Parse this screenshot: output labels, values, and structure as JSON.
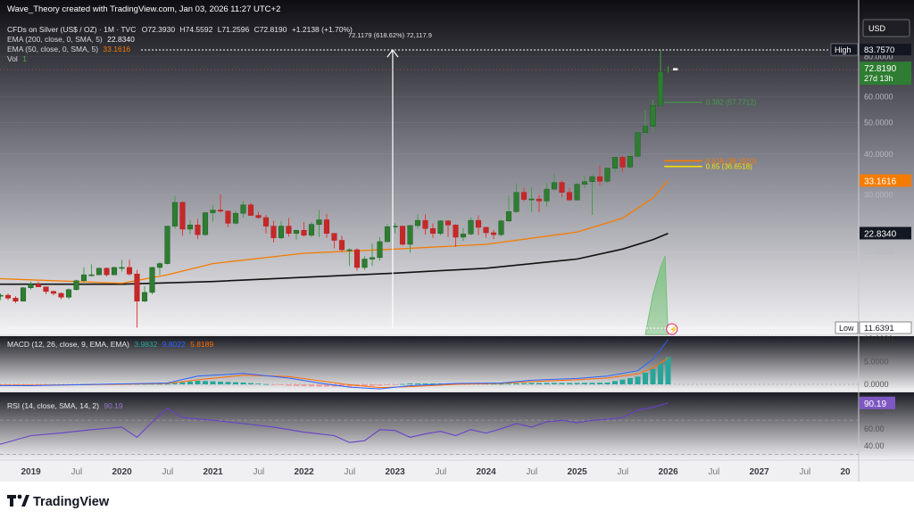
{
  "header": {
    "creator": "Wave_Theory created with TradingView.com, Jan 03, 2026 11:27 UTC+2",
    "currency_button": "USD"
  },
  "legend": {
    "symbol": "CFDs on Silver (US$ / OZ) · 1M · TVC",
    "open_label": "O",
    "open": "72.3930",
    "high_label": "H",
    "high": "74.5592",
    "low_label": "L",
    "low": "71.2596",
    "close_label": "C",
    "close": "72.8190",
    "change": "+1.2138 (+1.70%)",
    "ema200_label": "EMA (200, close, 0, SMA, 5)",
    "ema200_value": "22.8340",
    "ema50_label": "EMA (50, close, 0, SMA, 5)",
    "ema50_value": "33.1616",
    "vol_label": "Vol",
    "vol_value": "1"
  },
  "measure_label": "72.1179 (618.62%) 72,117.9",
  "fib_labels": {
    "f0": "0.382 (57.7712)",
    "f618": "0.618 (38.1610)",
    "f65": "0.65 (36.6518)"
  },
  "price_axis": {
    "ticks": [
      "80.0000",
      "60.0000",
      "50.0000",
      "40.0000",
      "30.0000",
      "20.0000"
    ],
    "high_tag": "High",
    "high_value": "83.7570",
    "last_price": "72.8190",
    "countdown": "27d 13h",
    "ema50_tag": "33.1616",
    "ema200_tag": "22.8340",
    "low_tag": "Low",
    "low_value": "11.6391"
  },
  "macd": {
    "label": "MACD (12, 26, close, 9, EMA, EMA)",
    "v1": "3.9832",
    "v2": "9.8022",
    "v3": "5.8189",
    "ticks": [
      "10.0000",
      "5.0000",
      "0.0000"
    ]
  },
  "rsi": {
    "label": "RSI (14, close, SMA, 14, 2)",
    "value_inline": "90.19",
    "tag": "90.19",
    "ticks": [
      "80.00",
      "60.00",
      "40.00"
    ]
  },
  "time_axis": [
    "2019",
    "Jul",
    "2020",
    "Jul",
    "2021",
    "Jul",
    "2022",
    "Jul",
    "2023",
    "Jul",
    "2024",
    "Jul",
    "2025",
    "Jul",
    "2026",
    "Jul",
    "2027",
    "Jul",
    "20"
  ],
  "footer": {
    "brand": "TradingView"
  },
  "colors": {
    "up": "#26a69a",
    "upBody": "#2e7d32",
    "down": "#ef5350",
    "downBody": "#c62828",
    "ema50": "#f57c00",
    "ema200": "#111111",
    "macd": "#2962ff",
    "signal": "#ff6d00",
    "rsi": "#7e57c2",
    "fib618": "#f57c00",
    "fib65": "#f6e000"
  },
  "chart_data": {
    "type": "candlestick",
    "title": "CFDs on Silver (US$ / OZ) · 1M · TVC",
    "ylabel": "USD",
    "ylim": [
      11.6391,
      83.757
    ],
    "start": "2018-01",
    "interval": "1M",
    "ohlc": [
      [
        17.1,
        17.3,
        16.3,
        16.5
      ],
      [
        16.5,
        16.9,
        16.2,
        16.4
      ],
      [
        16.4,
        16.6,
        16.0,
        16.3
      ],
      [
        16.3,
        16.8,
        16.1,
        16.6
      ],
      [
        16.6,
        16.8,
        16.2,
        16.4
      ],
      [
        16.4,
        17.3,
        16.2,
        16.2
      ],
      [
        16.2,
        16.1,
        15.4,
        15.5
      ],
      [
        15.5,
        15.7,
        14.4,
        14.6
      ],
      [
        14.6,
        14.9,
        14.2,
        14.7
      ],
      [
        14.7,
        14.9,
        14.2,
        14.4
      ],
      [
        14.4,
        14.6,
        13.9,
        14.1
      ],
      [
        14.1,
        15.6,
        14.1,
        15.5
      ],
      [
        15.5,
        16.2,
        15.3,
        15.9
      ],
      [
        15.9,
        16.2,
        15.6,
        15.6
      ],
      [
        15.6,
        15.6,
        14.8,
        15.1
      ],
      [
        15.1,
        15.2,
        14.7,
        14.9
      ],
      [
        14.9,
        15.0,
        14.3,
        14.5
      ],
      [
        14.5,
        15.4,
        14.3,
        15.3
      ],
      [
        15.3,
        16.4,
        15.2,
        16.3
      ],
      [
        16.3,
        17.9,
        16.1,
        17.0
      ],
      [
        17.0,
        18.3,
        16.8,
        17.0
      ],
      [
        17.0,
        17.9,
        17.0,
        17.8
      ],
      [
        17.8,
        17.9,
        16.8,
        17.0
      ],
      [
        17.0,
        18.0,
        17.0,
        17.9
      ],
      [
        17.9,
        18.9,
        17.4,
        17.9
      ],
      [
        17.9,
        18.9,
        16.9,
        17.1
      ],
      [
        17.1,
        17.6,
        11.6,
        14.1
      ],
      [
        14.1,
        15.7,
        14.0,
        15.0
      ],
      [
        15.0,
        18.0,
        14.8,
        17.9
      ],
      [
        17.9,
        18.6,
        17.0,
        18.4
      ],
      [
        18.4,
        24.0,
        18.3,
        24.0
      ],
      [
        24.0,
        29.8,
        23.6,
        28.4
      ],
      [
        28.4,
        28.6,
        22.4,
        23.5
      ],
      [
        23.5,
        25.0,
        22.7,
        24.2
      ],
      [
        24.2,
        25.3,
        21.9,
        22.6
      ],
      [
        22.6,
        26.5,
        22.4,
        26.4
      ],
      [
        26.4,
        27.9,
        24.8,
        26.9
      ],
      [
        26.9,
        30.1,
        26.4,
        26.7
      ],
      [
        26.7,
        26.8,
        23.8,
        24.5
      ],
      [
        24.5,
        26.7,
        24.3,
        26.3
      ],
      [
        26.3,
        28.7,
        25.5,
        27.9
      ],
      [
        27.9,
        28.3,
        25.9,
        25.9
      ],
      [
        25.9,
        26.6,
        25.3,
        25.5
      ],
      [
        25.5,
        26.0,
        22.8,
        24.0
      ],
      [
        24.0,
        24.9,
        21.4,
        22.1
      ],
      [
        22.1,
        24.8,
        21.9,
        24.0
      ],
      [
        24.0,
        25.4,
        22.3,
        22.8
      ],
      [
        22.8,
        23.4,
        21.8,
        23.3
      ],
      [
        23.3,
        24.7,
        22.3,
        22.5
      ],
      [
        22.5,
        24.7,
        22.2,
        24.3
      ],
      [
        24.3,
        26.9,
        22.2,
        25.1
      ],
      [
        25.1,
        26.2,
        22.1,
        22.8
      ],
      [
        22.8,
        22.8,
        20.5,
        21.7
      ],
      [
        21.7,
        22.4,
        20.0,
        20.3
      ],
      [
        20.3,
        20.5,
        18.1,
        20.3
      ],
      [
        20.3,
        20.5,
        17.5,
        17.9
      ],
      [
        17.9,
        19.4,
        17.6,
        19.0
      ],
      [
        19.0,
        21.2,
        18.1,
        19.2
      ],
      [
        19.2,
        22.2,
        18.8,
        21.5
      ],
      [
        21.5,
        24.3,
        21.4,
        23.9
      ],
      [
        23.9,
        24.5,
        22.8,
        24.0
      ],
      [
        24.0,
        24.0,
        20.9,
        21.1
      ],
      [
        21.1,
        24.0,
        19.9,
        24.1
      ],
      [
        24.1,
        26.1,
        23.6,
        25.0
      ],
      [
        25.0,
        26.1,
        22.6,
        23.6
      ],
      [
        23.6,
        24.5,
        22.1,
        22.8
      ],
      [
        22.8,
        25.0,
        22.5,
        24.9
      ],
      [
        24.9,
        25.0,
        22.2,
        24.2
      ],
      [
        24.2,
        24.3,
        20.7,
        22.2
      ],
      [
        22.2,
        23.7,
        21.6,
        22.7
      ],
      [
        22.7,
        25.5,
        22.5,
        25.0
      ],
      [
        25.0,
        25.9,
        22.5,
        23.8
      ],
      [
        23.8,
        23.8,
        22.1,
        22.9
      ],
      [
        22.9,
        23.4,
        21.9,
        22.6
      ],
      [
        22.6,
        25.1,
        22.3,
        24.9
      ],
      [
        24.9,
        29.8,
        24.7,
        26.6
      ],
      [
        26.6,
        32.5,
        26.4,
        30.5
      ],
      [
        30.5,
        31.5,
        28.6,
        29.0
      ],
      [
        29.0,
        31.7,
        26.6,
        29.1
      ],
      [
        29.1,
        30.0,
        26.5,
        28.7
      ],
      [
        28.7,
        32.7,
        27.6,
        31.2
      ],
      [
        31.2,
        34.9,
        31.0,
        32.7
      ],
      [
        32.7,
        33.2,
        29.5,
        30.5
      ],
      [
        30.5,
        31.5,
        28.7,
        28.9
      ],
      [
        28.9,
        32.7,
        28.8,
        32.3
      ],
      [
        32.3,
        34.2,
        31.4,
        32.9
      ],
      [
        32.9,
        34.6,
        26.0,
        34.1
      ],
      [
        34.1,
        36.9,
        32.1,
        33.0
      ],
      [
        33.0,
        36.4,
        32.7,
        36.2
      ],
      [
        36.2,
        39.1,
        35.1,
        39.1
      ],
      [
        39.1,
        39.6,
        35.3,
        36.5
      ],
      [
        36.5,
        40.8,
        36.2,
        39.4
      ],
      [
        39.4,
        46.7,
        39.2,
        46.6
      ],
      [
        46.6,
        54.5,
        45.5,
        48.7
      ],
      [
        48.7,
        58.8,
        46.9,
        56.5
      ],
      [
        56.5,
        83.8,
        56.2,
        71.6
      ],
      [
        72.4,
        74.6,
        71.3,
        72.8
      ]
    ],
    "ema50": [
      [
        0,
        16.8
      ],
      [
        12,
        16.4
      ],
      [
        24,
        16.0
      ],
      [
        30,
        17.0
      ],
      [
        36,
        18.4
      ],
      [
        48,
        19.8
      ],
      [
        60,
        20.4
      ],
      [
        72,
        21.1
      ],
      [
        84,
        23.0
      ],
      [
        90,
        25.4
      ],
      [
        94,
        29.3
      ],
      [
        96,
        33.2
      ]
    ],
    "ema200": [
      [
        0,
        15.9
      ],
      [
        12,
        15.9
      ],
      [
        24,
        15.9
      ],
      [
        36,
        16.2
      ],
      [
        48,
        16.7
      ],
      [
        60,
        17.2
      ],
      [
        72,
        17.8
      ],
      [
        84,
        19.0
      ],
      [
        90,
        20.4
      ],
      [
        94,
        21.8
      ],
      [
        96,
        22.8
      ]
    ],
    "fib_levels": [
      {
        "label": "0.382",
        "value": 57.7712
      },
      {
        "label": "0.618",
        "value": 38.161
      },
      {
        "label": "0.65",
        "value": 36.6518
      }
    ],
    "measure": {
      "from": 11.6391,
      "to": 83.757,
      "label": "72.1179 (618.62%) 72,117.9"
    },
    "macd": {
      "line": [
        [
          0,
          -0.2
        ],
        [
          12,
          -0.3
        ],
        [
          24,
          0.1
        ],
        [
          30,
          0.3
        ],
        [
          34,
          1.8
        ],
        [
          40,
          2.4
        ],
        [
          46,
          1.4
        ],
        [
          50,
          0.3
        ],
        [
          54,
          -0.6
        ],
        [
          58,
          -1.0
        ],
        [
          62,
          -0.3
        ],
        [
          68,
          0.2
        ],
        [
          74,
          0.3
        ],
        [
          78,
          0.9
        ],
        [
          84,
          1.3
        ],
        [
          88,
          1.8
        ],
        [
          92,
          3.0
        ],
        [
          94,
          5.5
        ],
        [
          96,
          9.8
        ]
      ],
      "signal": [
        [
          0,
          -0.1
        ],
        [
          12,
          -0.2
        ],
        [
          24,
          0.0
        ],
        [
          30,
          0.2
        ],
        [
          34,
          1.0
        ],
        [
          40,
          2.0
        ],
        [
          46,
          1.7
        ],
        [
          50,
          0.8
        ],
        [
          54,
          -0.1
        ],
        [
          58,
          -0.7
        ],
        [
          62,
          -0.5
        ],
        [
          68,
          0.0
        ],
        [
          74,
          0.2
        ],
        [
          78,
          0.6
        ],
        [
          84,
          1.0
        ],
        [
          88,
          1.4
        ],
        [
          92,
          2.3
        ],
        [
          94,
          3.6
        ],
        [
          96,
          5.8
        ]
      ],
      "hist_last": 3.9832,
      "ylim": [
        -1.5,
        10
      ]
    },
    "rsi": {
      "series": [
        [
          0,
          46
        ],
        [
          4,
          48
        ],
        [
          8,
          42
        ],
        [
          12,
          52
        ],
        [
          16,
          55
        ],
        [
          20,
          59
        ],
        [
          24,
          62
        ],
        [
          26,
          50
        ],
        [
          28,
          68
        ],
        [
          30,
          84
        ],
        [
          32,
          73
        ],
        [
          36,
          70
        ],
        [
          40,
          66
        ],
        [
          44,
          62
        ],
        [
          48,
          56
        ],
        [
          52,
          52
        ],
        [
          54,
          44
        ],
        [
          56,
          46
        ],
        [
          58,
          59
        ],
        [
          60,
          58
        ],
        [
          62,
          50
        ],
        [
          64,
          54
        ],
        [
          66,
          57
        ],
        [
          68,
          52
        ],
        [
          70,
          59
        ],
        [
          72,
          55
        ],
        [
          74,
          60
        ],
        [
          76,
          66
        ],
        [
          78,
          62
        ],
        [
          80,
          68
        ],
        [
          82,
          70
        ],
        [
          84,
          67
        ],
        [
          86,
          70
        ],
        [
          88,
          71
        ],
        [
          90,
          73
        ],
        [
          92,
          82
        ],
        [
          94,
          85
        ],
        [
          96,
          90.19
        ]
      ],
      "ylim": [
        30,
        95
      ],
      "bands": [
        70,
        30
      ]
    }
  }
}
